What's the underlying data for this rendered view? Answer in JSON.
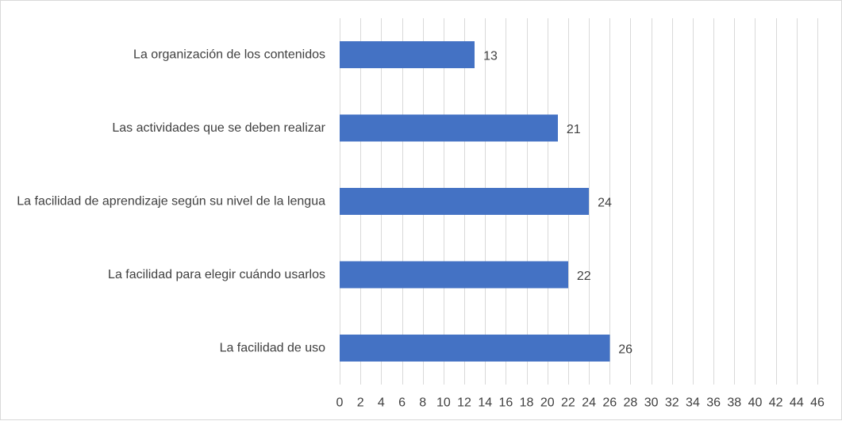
{
  "chart_data": {
    "type": "bar",
    "orientation": "horizontal",
    "categories": [
      "La organización de los contenidos",
      "Las actividades que se deben realizar",
      "La facilidad de aprendizaje según su nivel de la lengua",
      "La facilidad para elegir cuándo usarlos",
      "La facilidad de uso"
    ],
    "values": [
      13,
      21,
      24,
      22,
      26
    ],
    "data_labels": [
      "13",
      "21",
      "24",
      "22",
      "26"
    ],
    "title": "",
    "xlabel": "",
    "ylabel": "",
    "xlim": [
      0,
      46
    ],
    "x_ticks": [
      0,
      2,
      4,
      6,
      8,
      10,
      12,
      14,
      16,
      18,
      20,
      22,
      24,
      26,
      28,
      30,
      32,
      34,
      36,
      38,
      40,
      42,
      44,
      46
    ],
    "x_tick_labels": [
      "0",
      "2",
      "4",
      "6",
      "8",
      "10",
      "12",
      "14",
      "16",
      "18",
      "20",
      "22",
      "24",
      "26",
      "28",
      "30",
      "32",
      "34",
      "36",
      "38",
      "40",
      "42",
      "44",
      "46"
    ],
    "grid": "vertical",
    "legend": "none",
    "bar_color": "#4472C4",
    "grid_color": "#D9D9D9",
    "text_color": "#404040"
  }
}
